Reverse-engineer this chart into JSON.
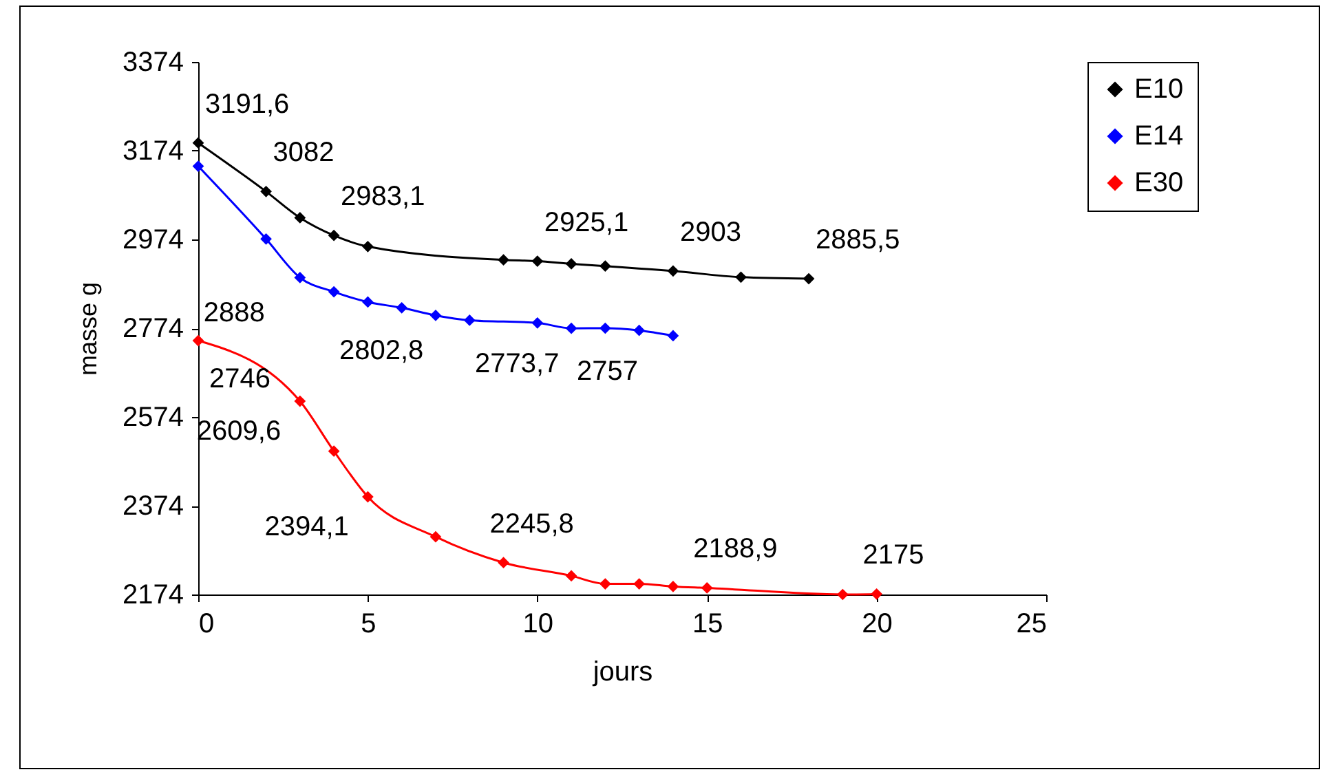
{
  "chart_data": {
    "type": "line",
    "xlabel": "jours",
    "ylabel": "masse g",
    "xlim": [
      0,
      25
    ],
    "xticks": [
      0,
      5,
      10,
      15,
      20,
      25
    ],
    "ylim": [
      2174,
      3374
    ],
    "yticks": [
      2174,
      2374,
      2574,
      2774,
      2974,
      3174,
      3374
    ],
    "grid": false,
    "legend": "right",
    "marker": "diamond",
    "line_style": "solid",
    "series": [
      {
        "name": "E10",
        "color": "#000000",
        "x": [
          0,
          2,
          3,
          4,
          5,
          9,
          10,
          11,
          12,
          14,
          16,
          18
        ],
        "values": [
          3191.6,
          3082,
          3023,
          2983.1,
          2958,
          2928,
          2925.1,
          2919,
          2914,
          2903,
          2889,
          2885.5
        ],
        "value_labels": [
          "3191,6",
          "3082",
          null,
          "2983,1",
          null,
          null,
          "2925,1",
          null,
          null,
          "2903",
          null,
          "2885,5"
        ]
      },
      {
        "name": "E14",
        "color": "#0000ff",
        "x": [
          0,
          2,
          3,
          4,
          5,
          6,
          7,
          8,
          10,
          11,
          12,
          13,
          14
        ],
        "values": [
          3139,
          2975,
          2888,
          2856,
          2833,
          2820,
          2802.8,
          2792,
          2786,
          2773.7,
          2774,
          2769,
          2757
        ],
        "value_labels": [
          null,
          null,
          "2888",
          null,
          null,
          null,
          "2802,8",
          null,
          null,
          "2773,7",
          null,
          null,
          "2757"
        ]
      },
      {
        "name": "E30",
        "color": "#ff0000",
        "x": [
          0,
          3,
          4,
          5,
          7,
          9,
          11,
          12,
          13,
          14,
          15,
          19,
          20
        ],
        "values": [
          2746,
          2609.6,
          2497,
          2394.1,
          2304,
          2245.8,
          2216,
          2198,
          2198,
          2192,
          2188.9,
          2174,
          2175
        ],
        "value_labels": [
          "2746",
          "2609,6",
          null,
          "2394,1",
          null,
          "2245,8",
          null,
          null,
          null,
          null,
          "2188,9",
          null,
          "2175"
        ]
      }
    ]
  }
}
